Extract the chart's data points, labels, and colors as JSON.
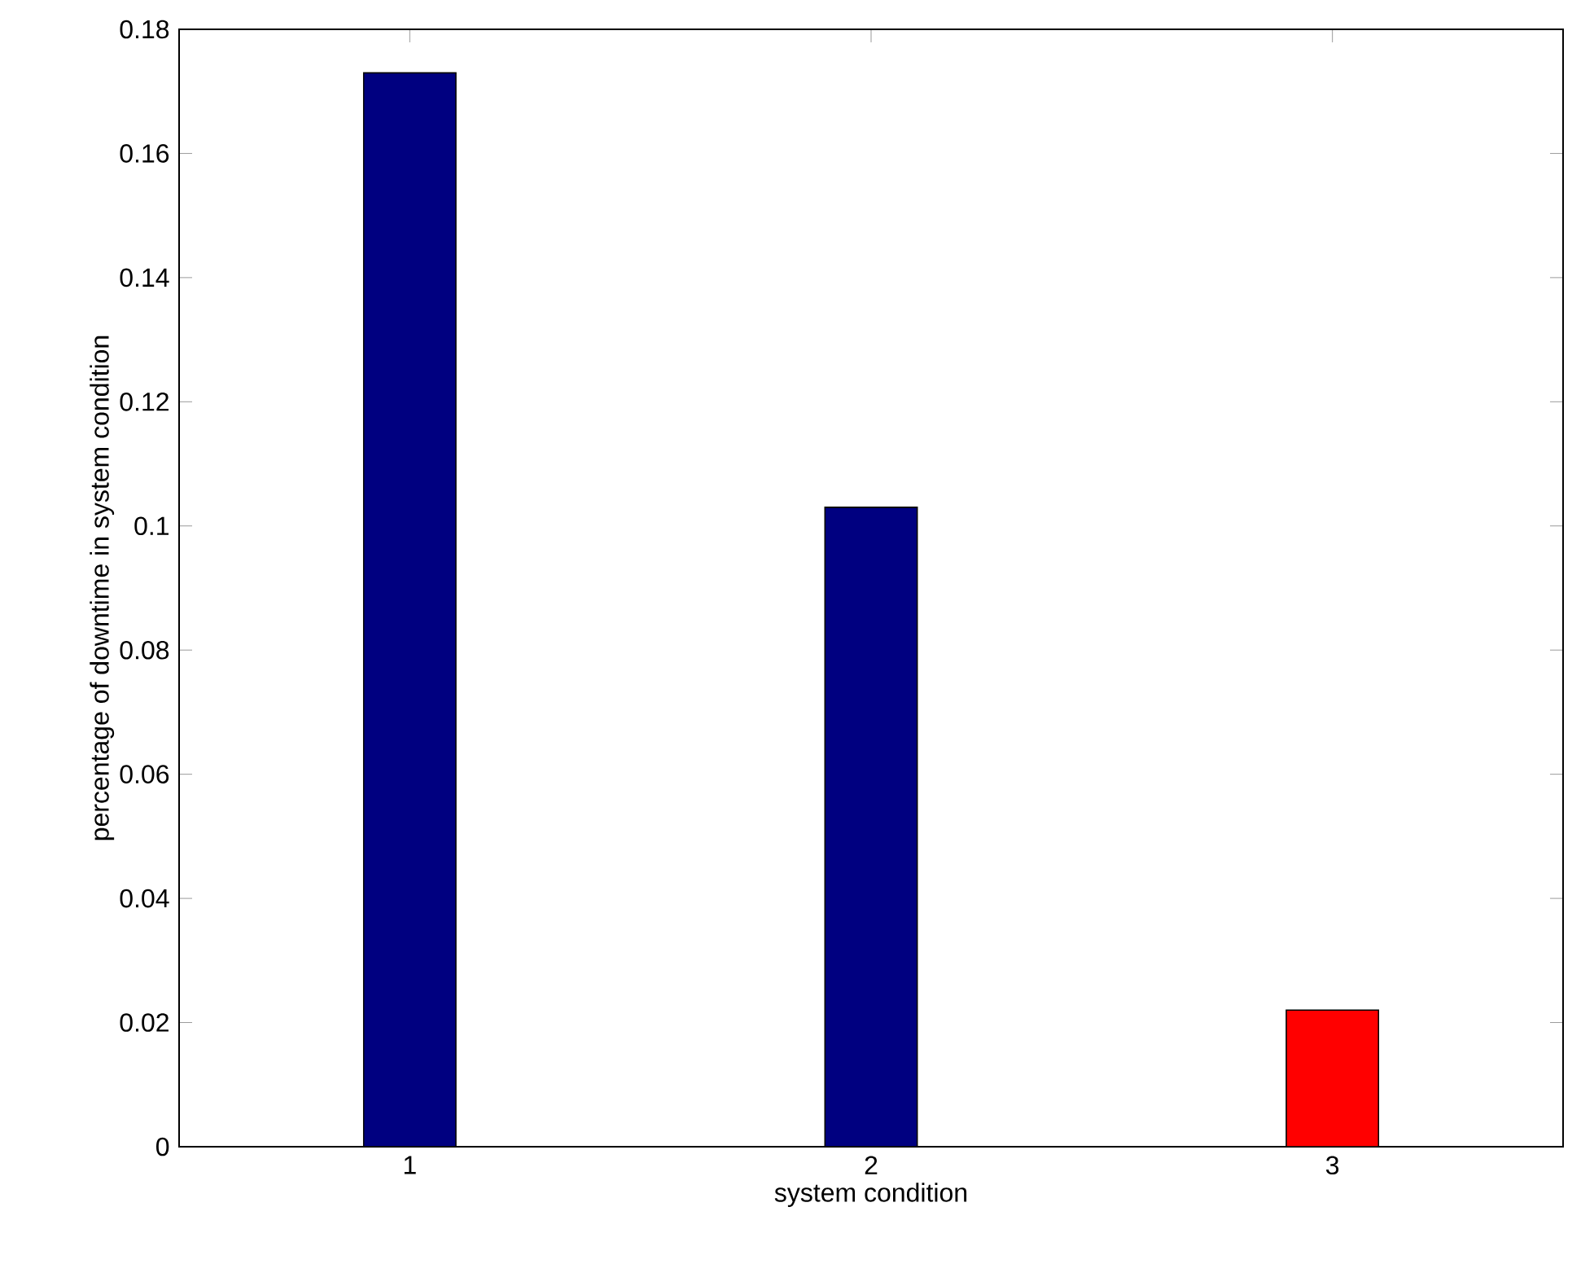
{
  "chart_data": {
    "type": "bar",
    "xlabel": "system condition",
    "ylabel": "percentage of downtime in system condition",
    "categories": [
      "1",
      "2",
      "3"
    ],
    "values": [
      0.173,
      0.103,
      0.022
    ],
    "colors": [
      "#000080",
      "#000080",
      "#ff0000"
    ],
    "ylim": [
      0,
      0.18
    ],
    "yticks": [
      0,
      0.02,
      0.04,
      0.06,
      0.08,
      0.1,
      0.12,
      0.14,
      0.16,
      0.18
    ]
  }
}
